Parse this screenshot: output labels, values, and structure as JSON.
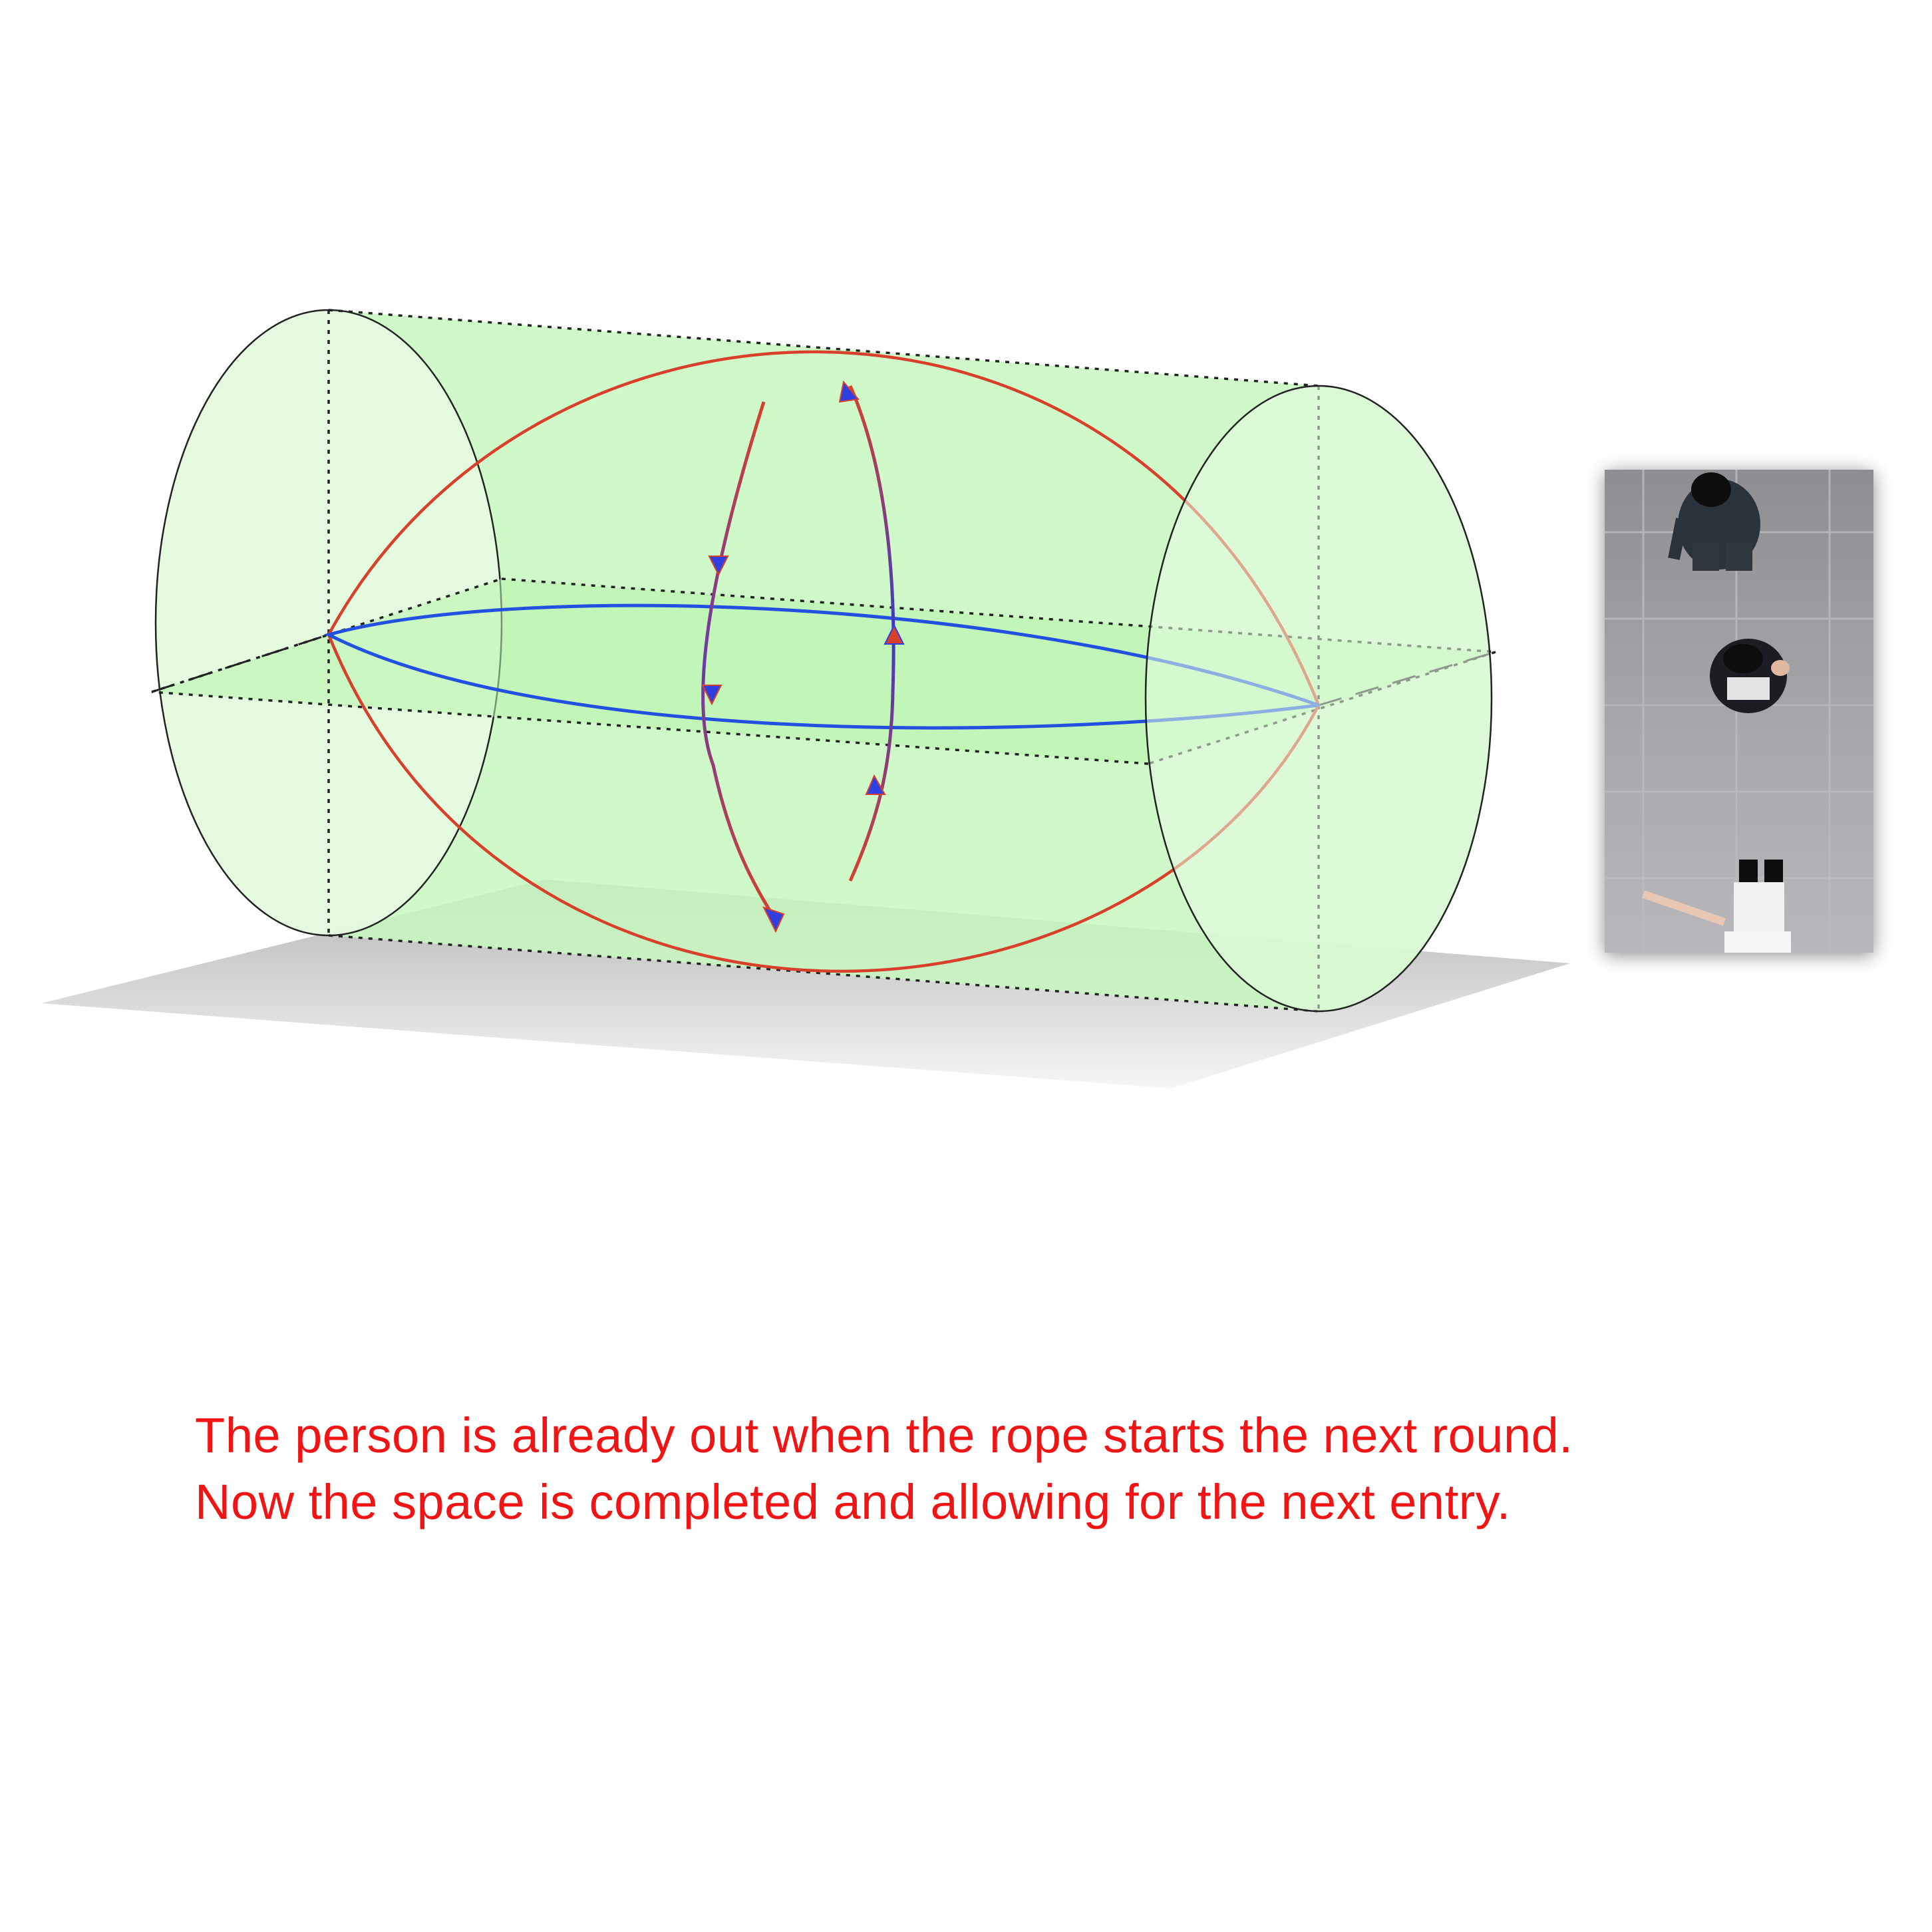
{
  "caption": {
    "line1": "The person is already out when the rope starts the next round.",
    "line2": "Now the space is completed and allowing for the next entry."
  },
  "colors": {
    "background": "#ffffff",
    "volume_fill": "#c8f8c0",
    "volume_fill_light": "#e6fbe2",
    "rope_red": "#d8402c",
    "rope_blue": "#2250e0",
    "outline": "#222222",
    "floor_shadow": "#c8c8c8",
    "caption": "#f01414",
    "photo_floor": "#9c9ca0"
  },
  "diagram": {
    "shape": "cylinder",
    "rope_paths": [
      "red-rope-arc",
      "blue-rope-arc"
    ],
    "direction_arrows": [
      "downward",
      "upward"
    ]
  },
  "photo": {
    "description_icon": "overhead-photo-three-people",
    "people": [
      "person-top",
      "person-middle",
      "person-bottom"
    ]
  }
}
